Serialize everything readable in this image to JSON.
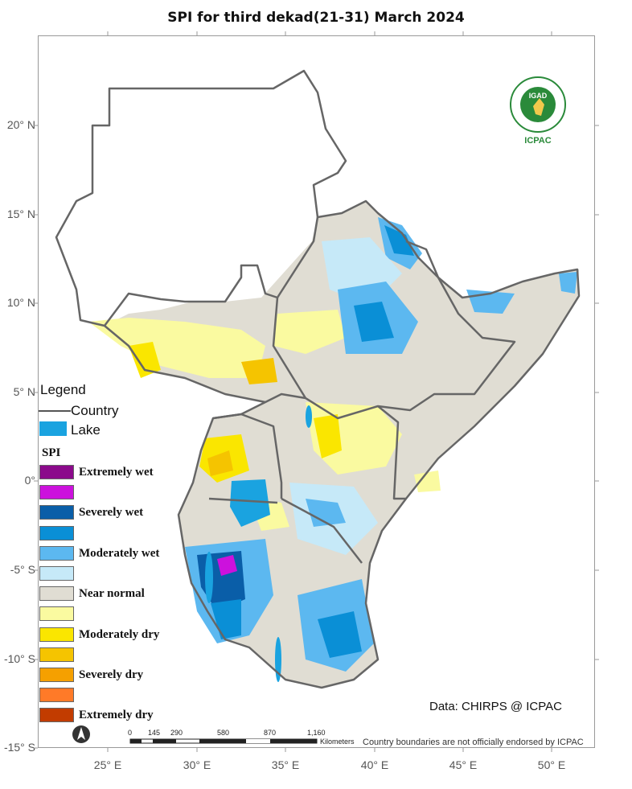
{
  "title": "SPI  for third dekad(21-31) March 2024",
  "axes": {
    "y_ticks": [
      "20° N",
      "15° N",
      "10° N",
      "5° N",
      "0°",
      "-5° S",
      "-10° S",
      "-15° S"
    ],
    "x_ticks": [
      "25° E",
      "30° E",
      "35° E",
      "40° E",
      "45° E",
      "50° E"
    ]
  },
  "legend": {
    "title": "Legend",
    "country": "Country",
    "lake": "Lake",
    "spi_title": "SPI",
    "classes": [
      {
        "label": "Extremely wet",
        "color": "#8b0a8b"
      },
      {
        "label": "",
        "color": "#cc11dd"
      },
      {
        "label": "Severely wet",
        "color": "#0a5ea8"
      },
      {
        "label": "",
        "color": "#0a8fd6"
      },
      {
        "label": "Moderately wet",
        "color": "#5cb8f0"
      },
      {
        "label": "",
        "color": "#c6e9f8"
      },
      {
        "label": "Near normal",
        "color": "#e0ddd3"
      },
      {
        "label": "",
        "color": "#fafaa0"
      },
      {
        "label": "Moderately dry",
        "color": "#fae600"
      },
      {
        "label": "",
        "color": "#f5c400"
      },
      {
        "label": "Severely dry",
        "color": "#f5a000"
      },
      {
        "label": "",
        "color": "#ff7a28"
      },
      {
        "label": "Extremely dry",
        "color": "#c23c00"
      }
    ]
  },
  "logo": {
    "text_top": "IGAD",
    "text_bottom": "ICPAC"
  },
  "credit": "Data: CHIRPS @ ICPAC",
  "scalebar": {
    "labels": [
      "0",
      "145",
      "290",
      "580",
      "870",
      "1,160"
    ],
    "unit": "Kilometers"
  },
  "disclaimer": "Country boundaries are not officially endorsed by ICPAC",
  "colors": {
    "country_line": "#666666",
    "lake": "#1aa3e0",
    "background": "#ffffff"
  }
}
